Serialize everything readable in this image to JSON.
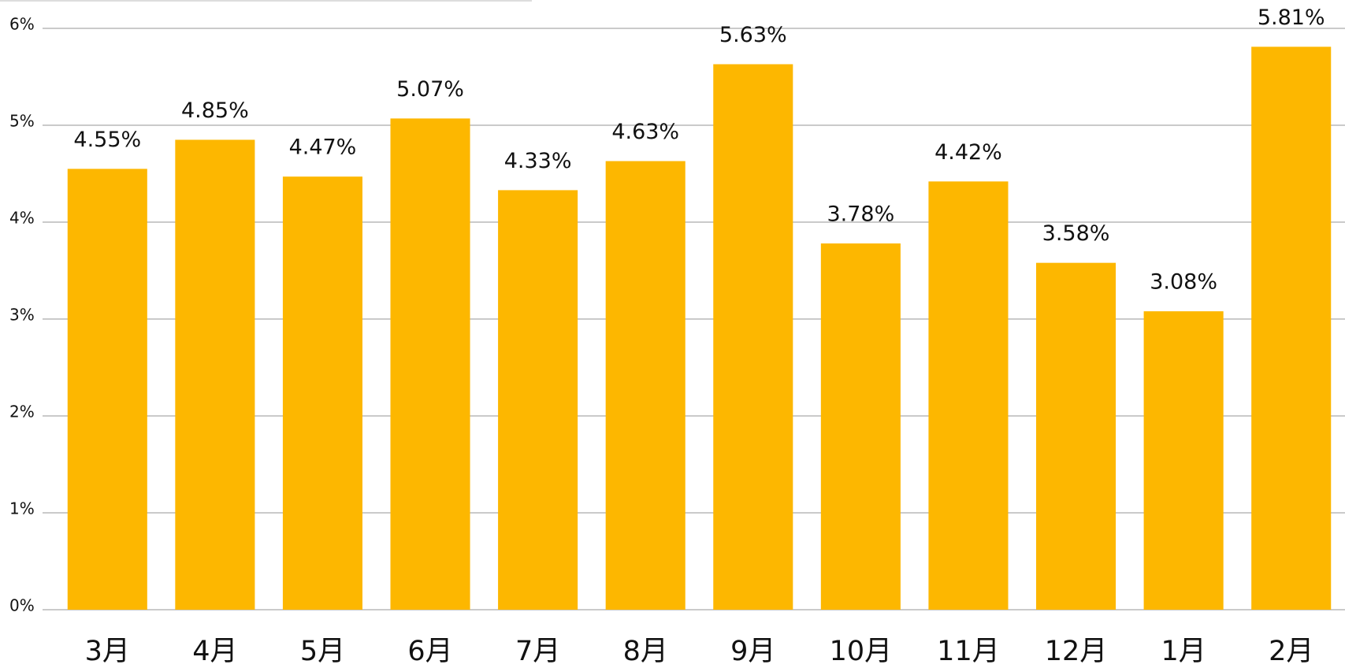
{
  "chart_data": {
    "type": "bar",
    "categories": [
      "3月",
      "4月",
      "5月",
      "6月",
      "7月",
      "8月",
      "9月",
      "10月",
      "11月",
      "12月",
      "1月",
      "2月"
    ],
    "values": [
      4.55,
      4.85,
      4.47,
      5.07,
      4.33,
      4.63,
      5.63,
      3.78,
      4.42,
      3.58,
      3.08,
      5.81
    ],
    "value_labels": [
      "4.55%",
      "4.85%",
      "4.47%",
      "5.07%",
      "4.33%",
      "4.63%",
      "5.63%",
      "3.78%",
      "4.42%",
      "3.58%",
      "3.08%",
      "5.81%"
    ],
    "color": "#fdb700",
    "ylim": [
      0,
      6
    ],
    "yticks": [
      {
        "value": 0,
        "label": "0%"
      },
      {
        "value": 1,
        "label": "1%"
      },
      {
        "value": 2,
        "label": "2%"
      },
      {
        "value": 3,
        "label": "3%"
      },
      {
        "value": 4,
        "label": "4%"
      },
      {
        "value": 5,
        "label": "5%"
      },
      {
        "value": 6,
        "label": "6%"
      }
    ],
    "grid": true
  }
}
